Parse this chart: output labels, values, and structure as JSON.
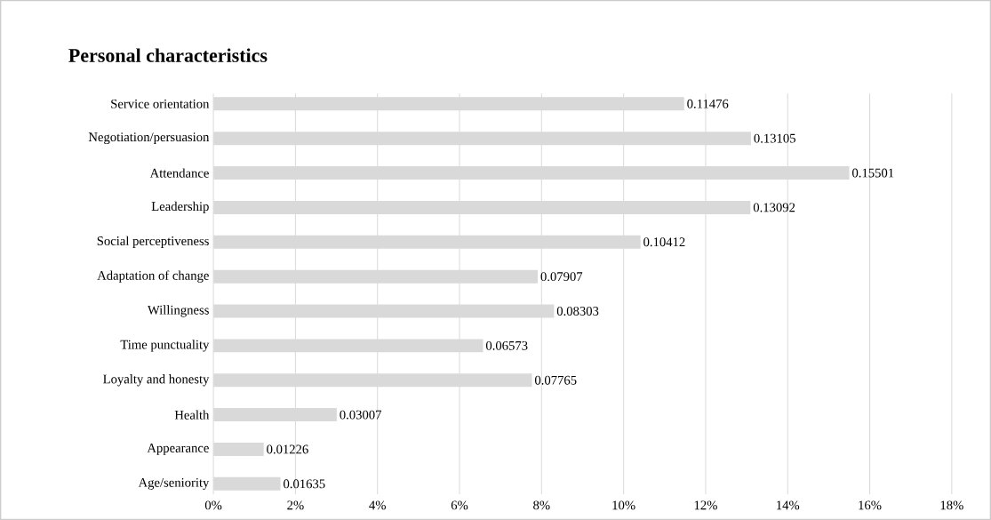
{
  "chart_data": {
    "type": "bar",
    "orientation": "horizontal",
    "title": "Personal characteristics",
    "categories": [
      "Service orientation",
      "Negotiation/persuasion",
      "Attendance",
      "Leadership",
      "Social perceptiveness",
      "Adaptation of change",
      "Willingness",
      "Time punctuality",
      "Loyalty and honesty",
      "Health",
      "Appearance",
      "Age/seniority"
    ],
    "values": [
      0.11476,
      0.13105,
      0.15501,
      0.13092,
      0.10412,
      0.07907,
      0.08303,
      0.06573,
      0.07765,
      0.03007,
      0.01226,
      0.01635
    ],
    "color": "#d9d9d9",
    "data_labels": true,
    "grid": "x",
    "xlim": [
      0,
      0.18
    ],
    "xticks": [
      {
        "value": 0,
        "label": "0%"
      },
      {
        "value": 0.02,
        "label": "2%"
      },
      {
        "value": 0.04,
        "label": "4%"
      },
      {
        "value": 0.06,
        "label": "6%"
      },
      {
        "value": 0.08,
        "label": "8%"
      },
      {
        "value": 0.1,
        "label": "10%"
      },
      {
        "value": 0.12,
        "label": "12%"
      },
      {
        "value": 0.14,
        "label": "14%"
      },
      {
        "value": 0.16,
        "label": "16%"
      },
      {
        "value": 0.18,
        "label": "18%"
      }
    ]
  }
}
